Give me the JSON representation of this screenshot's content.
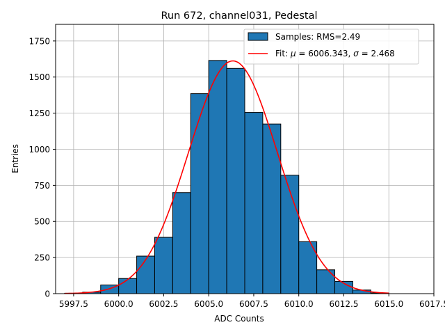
{
  "chart_data": {
    "type": "bar",
    "title": "Run 672, channel031, Pedestal",
    "xlabel": "ADC Counts",
    "ylabel": "Entries",
    "xlim": [
      5996.5,
      6017.5
    ],
    "ylim": [
      0,
      1865
    ],
    "xticks": [
      5997.5,
      6000.0,
      6002.5,
      6005.0,
      6007.5,
      6010.0,
      6012.5,
      6015.0,
      6017.5
    ],
    "xtick_labels": [
      "5997.5",
      "6000.0",
      "6002.5",
      "6005.0",
      "6007.5",
      "6010.0",
      "6012.5",
      "6015.0",
      "6017.5"
    ],
    "yticks": [
      0,
      250,
      500,
      750,
      1000,
      1250,
      1500,
      1750
    ],
    "ytick_labels": [
      "0",
      "250",
      "500",
      "750",
      "1000",
      "1250",
      "1500",
      "1750"
    ],
    "grid": true,
    "legend_position": "top-right",
    "histogram": {
      "name": "Samples: RMS=2.49",
      "color": "#1f77b4",
      "edgecolor": "#000000",
      "bin_edges": [
        5997,
        5998,
        5999,
        6000,
        6001,
        6002,
        6003,
        6004,
        6005,
        6006,
        6007,
        6008,
        6009,
        6010,
        6011,
        6012,
        6013,
        6014,
        6015
      ],
      "counts": [
        3,
        10,
        60,
        105,
        260,
        390,
        700,
        1385,
        1615,
        1560,
        1255,
        1175,
        820,
        360,
        165,
        85,
        25,
        5
      ]
    },
    "fit": {
      "name_prefix": "Fit: ",
      "mu_symbol": "μ",
      "mu_text": " = 6006.343, ",
      "sigma_symbol": "σ",
      "sigma_text": " = 2.468",
      "color": "#ff0000",
      "mu": 6006.343,
      "sigma": 2.468,
      "amplitude": 1612,
      "x_range": [
        5997,
        6015
      ]
    }
  }
}
